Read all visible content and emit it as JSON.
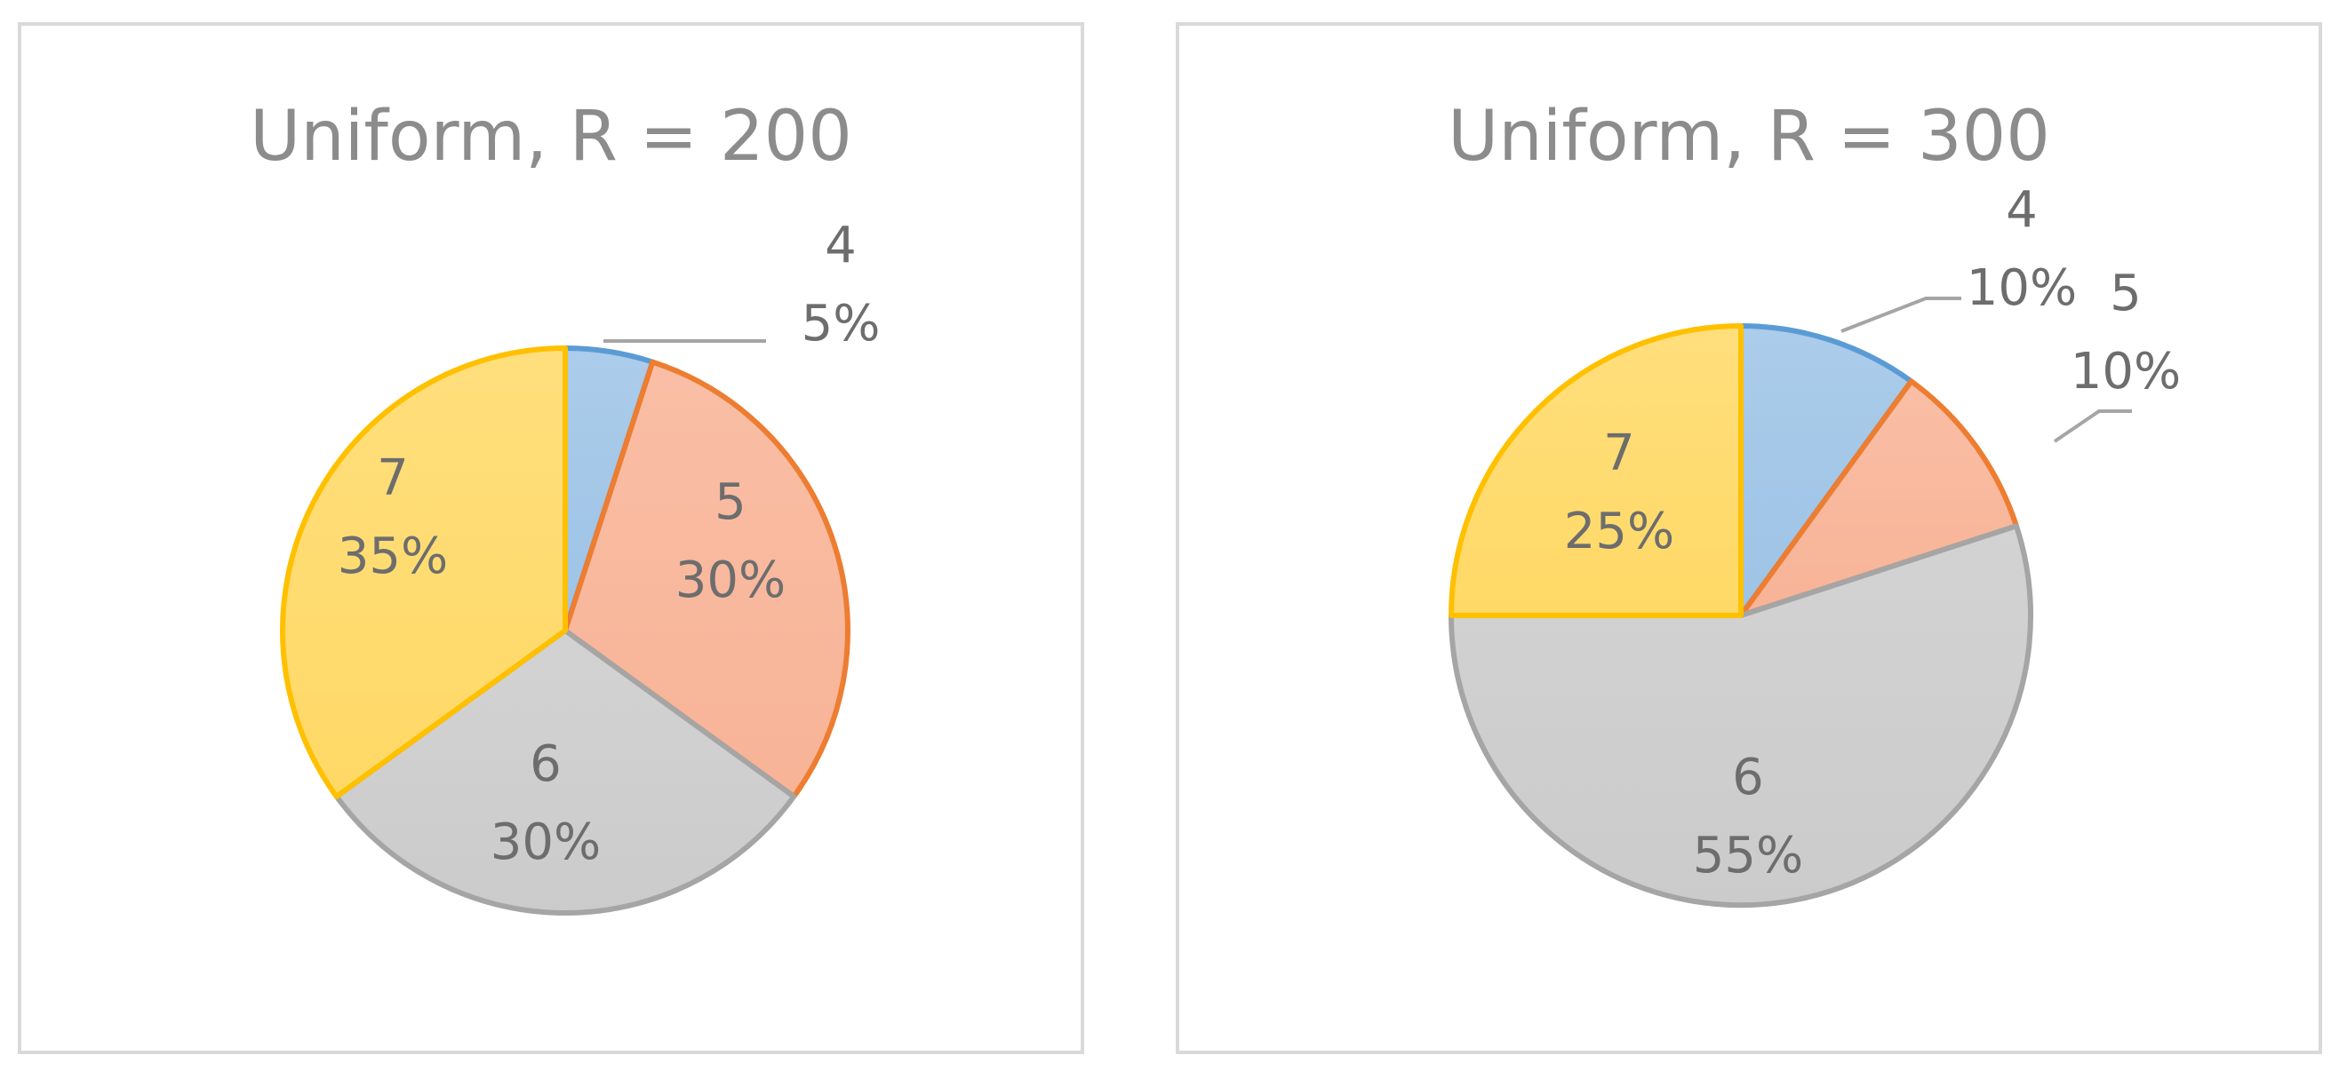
{
  "chart_data": [
    {
      "type": "pie",
      "title": "Uniform, R = 200",
      "categories": [
        "4",
        "5",
        "6",
        "7"
      ],
      "values": [
        5,
        30,
        30,
        35
      ],
      "labels": [
        "5%",
        "30%",
        "30%",
        "35%"
      ],
      "colors": [
        "#5b9bd5",
        "#ed7d31",
        "#a5a5a5",
        "#ffc000"
      ],
      "fills": [
        "#9dc3e6",
        "#f8b396",
        "#cbcbcb",
        "#ffd966"
      ],
      "legend": "none"
    },
    {
      "type": "pie",
      "title": "Uniform, R = 300",
      "categories": [
        "4",
        "5",
        "6",
        "7"
      ],
      "values": [
        10,
        10,
        55,
        25
      ],
      "labels": [
        "10%",
        "10%",
        "55%",
        "25%"
      ],
      "colors": [
        "#5b9bd5",
        "#ed7d31",
        "#a5a5a5",
        "#ffc000"
      ],
      "fills": [
        "#9dc3e6",
        "#f8b396",
        "#cbcbcb",
        "#ffd966"
      ],
      "legend": "none"
    }
  ]
}
